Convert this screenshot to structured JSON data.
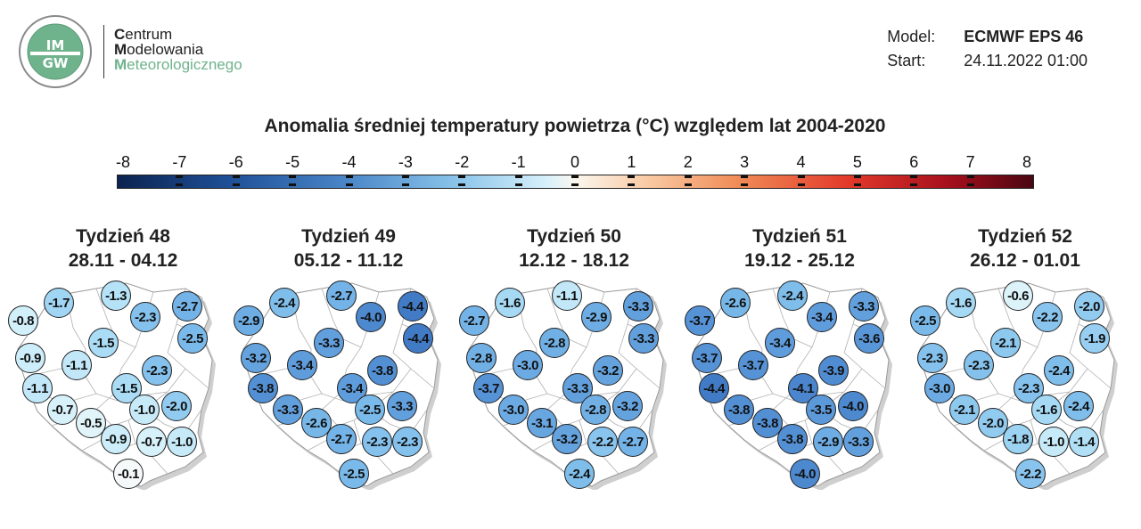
{
  "header": {
    "logo_text": "IMGW",
    "brand": [
      {
        "initial": "C",
        "rest": "entrum"
      },
      {
        "initial": "M",
        "rest": "odelowania"
      },
      {
        "initial": "M",
        "rest": "eteorologicznego"
      }
    ],
    "model_label": "Model:",
    "model_value": "ECMWF EPS 46",
    "start_label": "Start:",
    "start_value": "24.11.2022 01:00"
  },
  "title": "Anomalia średniej temperatury powietrza (°C) względem lat 2004-2020",
  "scale": {
    "ticks": [
      "-8",
      "-7",
      "-6",
      "-5",
      "-4",
      "-3",
      "-2",
      "-1",
      "0",
      "1",
      "2",
      "3",
      "4",
      "5",
      "6",
      "7",
      "8"
    ],
    "min": -8,
    "max": 8
  },
  "weeks": [
    {
      "name": "Tydzień 48",
      "dates": "28.11 - 04.12",
      "values": [
        "-1.7",
        "-1.3",
        "-2.7",
        "-0.8",
        "-2.3",
        "-2.5",
        "-0.9",
        "-1.5",
        "-1.1",
        "-2.3",
        "-1.1",
        "-1.5",
        "-0.7",
        "-2.0",
        "-1.0",
        "-0.5",
        "-0.9",
        "-0.7",
        "-1.0",
        "-0.1"
      ]
    },
    {
      "name": "Tydzień 49",
      "dates": "05.12 - 11.12",
      "values": [
        "-2.4",
        "-2.7",
        "-4.4",
        "-2.9",
        "-4.0",
        "-4.4",
        "-3.2",
        "-3.3",
        "-3.4",
        "-3.8",
        "-3.8",
        "-3.4",
        "-3.3",
        "-3.3",
        "-2.5",
        "-2.6",
        "-2.7",
        "-2.3",
        "-2.3",
        "-2.5"
      ]
    },
    {
      "name": "Tydzień 50",
      "dates": "12.12 - 18.12",
      "values": [
        "-1.6",
        "-1.1",
        "-3.3",
        "-2.7",
        "-2.9",
        "-3.3",
        "-2.8",
        "-2.8",
        "-3.0",
        "-3.2",
        "-3.7",
        "-3.3",
        "-3.0",
        "-3.2",
        "-2.8",
        "-3.1",
        "-3.2",
        "-2.2",
        "-2.7",
        "-2.4"
      ]
    },
    {
      "name": "Tydzień 51",
      "dates": "19.12 - 25.12",
      "values": [
        "-2.6",
        "-2.4",
        "-3.3",
        "-3.7",
        "-3.4",
        "-3.6",
        "-3.7",
        "-3.4",
        "-3.7",
        "-3.9",
        "-4.4",
        "-4.1",
        "-3.8",
        "-4.0",
        "-3.5",
        "-3.8",
        "-3.8",
        "-2.9",
        "-3.3",
        "-4.0"
      ]
    },
    {
      "name": "Tydzień 52",
      "dates": "26.12 - 01.01",
      "values": [
        "-1.6",
        "-0.6",
        "-2.0",
        "-2.5",
        "-2.2",
        "-1.9",
        "-2.3",
        "-2.1",
        "-2.3",
        "-2.4",
        "-3.0",
        "-2.3",
        "-2.1",
        "-2.4",
        "-1.6",
        "-2.0",
        "-1.8",
        "-1.0",
        "-1.4",
        "-2.2"
      ]
    }
  ]
}
